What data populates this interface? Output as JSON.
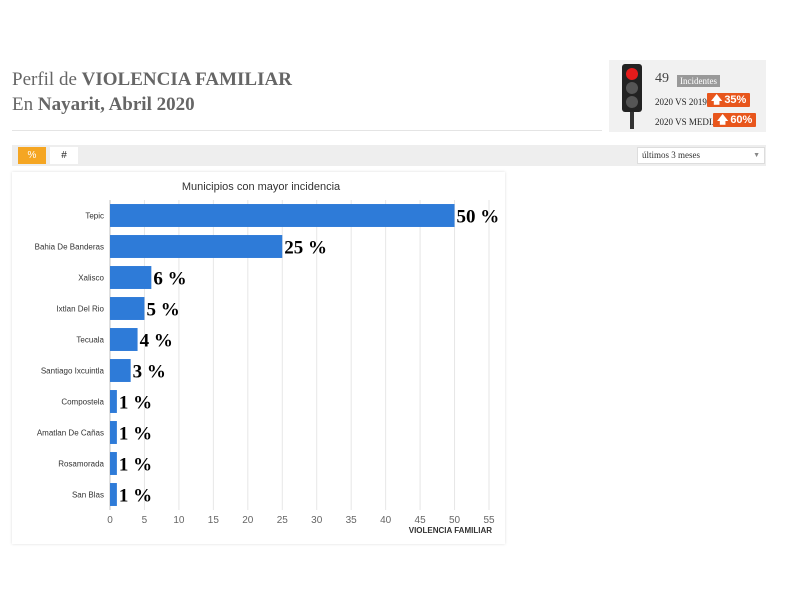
{
  "header": {
    "title_prefix": "Perfil de",
    "title_main": "VIOLENCIA FAMILIAR",
    "subtitle_prefix": "En",
    "subtitle_main": "Nayarit, Abril 2020"
  },
  "kpi": {
    "count": "49",
    "badge": "Incidentes",
    "row1_label": "2020 VS 2019",
    "row1_value": "35%",
    "row2_label": "2020 VS MEDIA",
    "row2_value": "60%",
    "accent": "#e8561c",
    "light_active": "red"
  },
  "toolbar": {
    "tab_percent": "%",
    "tab_count": "#",
    "select_value": "últimos 3 meses"
  },
  "chart_data": {
    "type": "bar",
    "orientation": "horizontal",
    "title": "Municipios con mayor incidencia",
    "xlabel": "VIOLENCIA FAMILIAR",
    "categories": [
      "Tepic",
      "Bahia De Banderas",
      "Xalisco",
      "Ixtlan Del Rio",
      "Tecuala",
      "Santiago Ixcuintla",
      "Compostela",
      "Amatlan De Cañas",
      "Rosamorada",
      "San Blas"
    ],
    "values": [
      50,
      25,
      6,
      5,
      4,
      3,
      1,
      1,
      1,
      1
    ],
    "data_labels": [
      "50 %",
      "25 %",
      "6 %",
      "5 %",
      "4 %",
      "3 %",
      "1 %",
      "1 %",
      "1 %",
      "1 %"
    ],
    "xlim": [
      0,
      55
    ],
    "xticks": [
      0,
      5,
      10,
      15,
      20,
      25,
      30,
      35,
      40,
      45,
      50,
      55
    ],
    "grid": true,
    "bar_color": "#2e7bd8"
  }
}
